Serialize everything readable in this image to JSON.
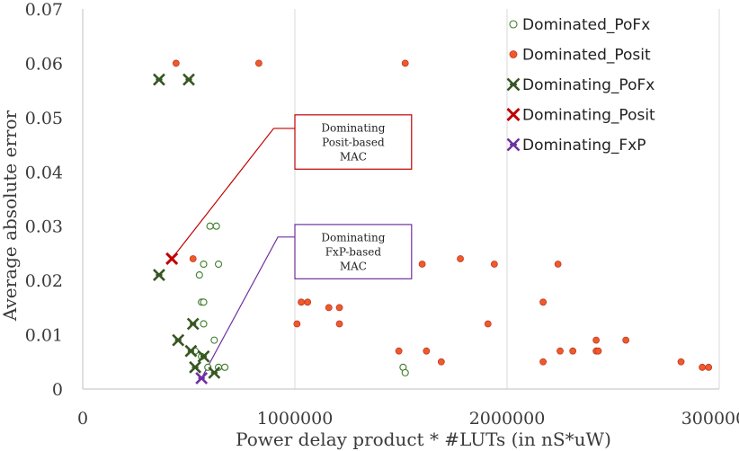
{
  "chart_data": {
    "type": "scatter",
    "xlabel": "Power delay product * #LUTs (in nS*uW)",
    "ylabel": "Average absolute error",
    "xlim": [
      0,
      3000000
    ],
    "ylim": [
      0,
      0.07
    ],
    "x_ticks": [
      0,
      1000000,
      2000000,
      3000000
    ],
    "x_tick_labels": [
      "0",
      "1000000",
      "2000000",
      "3000000"
    ],
    "y_ticks": [
      0,
      0.01,
      0.02,
      0.03,
      0.04,
      0.05,
      0.06,
      0.07
    ],
    "y_tick_labels": [
      "0",
      "0.01",
      "0.02",
      "0.03",
      "0.04",
      "0.05",
      "0.06",
      "0.07"
    ],
    "grid": "vertical-major",
    "legend_position": "top-right",
    "series": [
      {
        "name": "Dominated_PoFx",
        "marker": "circle-open",
        "color": "#3e7d2a",
        "points": [
          [
            600000,
            0.03
          ],
          [
            630000,
            0.03
          ],
          [
            570000,
            0.023
          ],
          [
            640000,
            0.023
          ],
          [
            560000,
            0.016
          ],
          [
            570000,
            0.016
          ],
          [
            550000,
            0.021
          ],
          [
            570000,
            0.012
          ],
          [
            620000,
            0.009
          ],
          [
            530000,
            0.007
          ],
          [
            560000,
            0.006
          ],
          [
            590000,
            0.004
          ],
          [
            640000,
            0.004
          ],
          [
            670000,
            0.004
          ],
          [
            1510000,
            0.004
          ],
          [
            1520000,
            0.003
          ]
        ]
      },
      {
        "name": "Dominated_Posit",
        "marker": "circle",
        "color": "#f05a28",
        "edge": "#c0392b",
        "points": [
          [
            440000,
            0.06
          ],
          [
            830000,
            0.06
          ],
          [
            1520000,
            0.06
          ],
          [
            520000,
            0.024
          ],
          [
            1010000,
            0.012
          ],
          [
            1030000,
            0.016
          ],
          [
            1060000,
            0.016
          ],
          [
            1160000,
            0.015
          ],
          [
            1210000,
            0.015
          ],
          [
            1210000,
            0.012
          ],
          [
            1600000,
            0.023
          ],
          [
            1780000,
            0.024
          ],
          [
            1940000,
            0.023
          ],
          [
            2240000,
            0.023
          ],
          [
            1910000,
            0.012
          ],
          [
            2170000,
            0.016
          ],
          [
            1490000,
            0.007
          ],
          [
            1620000,
            0.007
          ],
          [
            1690000,
            0.005
          ],
          [
            2170000,
            0.005
          ],
          [
            2250000,
            0.007
          ],
          [
            2310000,
            0.007
          ],
          [
            2420000,
            0.009
          ],
          [
            2420000,
            0.007
          ],
          [
            2430000,
            0.007
          ],
          [
            2560000,
            0.009
          ],
          [
            2820000,
            0.005
          ],
          [
            2920000,
            0.004
          ],
          [
            2950000,
            0.004
          ]
        ]
      },
      {
        "name": "Dominating_PoFx",
        "marker": "asterisk-x",
        "color": "#375623",
        "points": [
          [
            360000,
            0.057
          ],
          [
            500000,
            0.057
          ],
          [
            360000,
            0.021
          ],
          [
            520000,
            0.012
          ],
          [
            450000,
            0.009
          ],
          [
            510000,
            0.007
          ],
          [
            570000,
            0.006
          ],
          [
            530000,
            0.004
          ],
          [
            620000,
            0.003
          ]
        ]
      },
      {
        "name": "Dominating_Posit",
        "marker": "x",
        "color": "#c00000",
        "points": [
          [
            420000,
            0.024
          ]
        ]
      },
      {
        "name": "Dominating_FxP",
        "marker": "asterisk-x",
        "color": "#7030a0",
        "points": [
          [
            560000,
            0.002
          ]
        ]
      }
    ],
    "annotations": [
      {
        "lines": [
          "Dominating",
          "Posit-based",
          "MAC"
        ],
        "border_color": "#c00000",
        "target": [
          420000,
          0.024
        ],
        "anchor": [
          900000,
          0.048
        ],
        "box_x": [
          1000000,
          1550000
        ],
        "box_y": [
          0.0405,
          0.0505
        ]
      },
      {
        "lines": [
          "Dominating",
          "FxP-based",
          "MAC"
        ],
        "border_color": "#7030a0",
        "target": [
          560000,
          0.002
        ],
        "anchor": [
          920000,
          0.028
        ],
        "box_x": [
          1000000,
          1550000
        ],
        "box_y": [
          0.0203,
          0.0303
        ]
      }
    ]
  }
}
